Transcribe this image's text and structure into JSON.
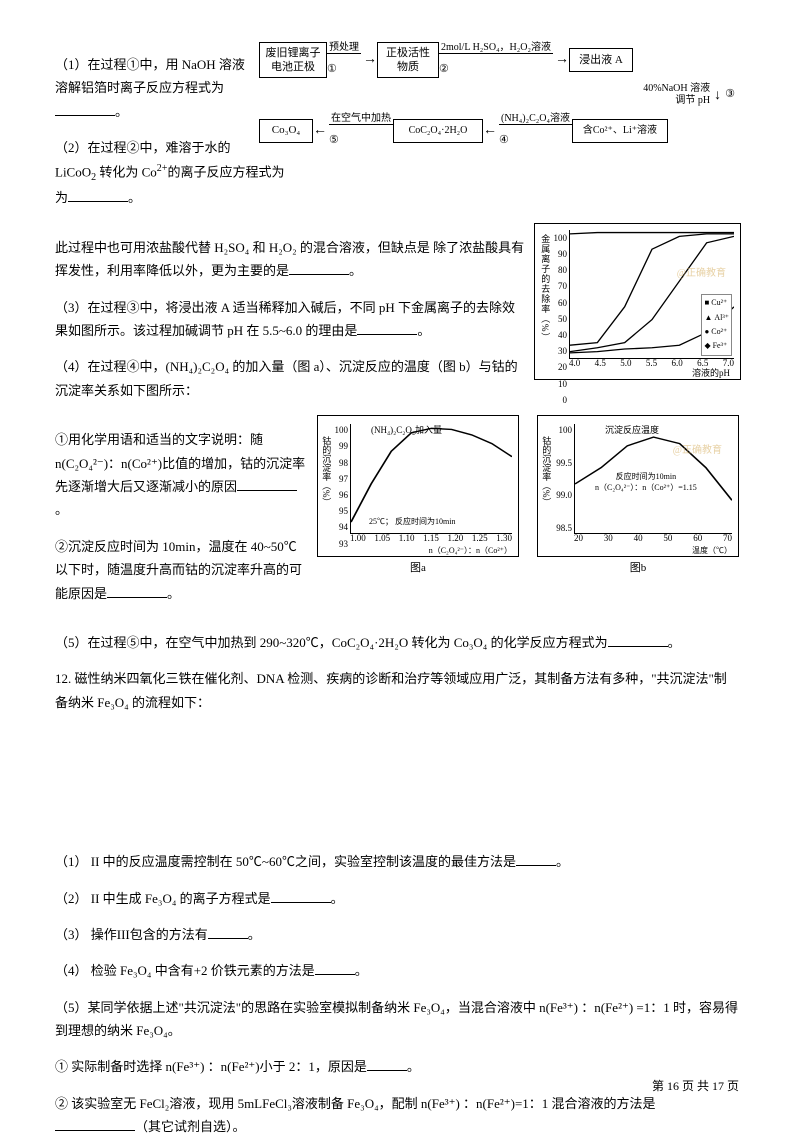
{
  "text": {
    "q1_a": "（1）在过程①中，用 NaOH 溶液溶解铝箔时离子反应方程式为",
    "q1_b": "。",
    "q2_a": "（2）在过程②中，难溶于水的 LiCoO",
    "q2_sub": "2",
    "q2_b": " 转化为 Co",
    "q2_sup": "2+",
    "q2_c": "的离子反应方程式为",
    "q2_d": "。",
    "q2_e": "此过程中也可用浓盐酸代替 H₂SO₄ 和 H₂O₂ 的混合溶液，但缺点是 除了浓盐酸具有挥发性，利用率降低以外，更为主要的是",
    "q2_f": "。",
    "q3_a": "（3）在过程③中，将浸出液 A 适当稀释加入碱后，不同 pH 下金属离子的去除效果如图所示。该过程加碱调节 pH 在 5.5~6.0 的理由是",
    "q3_b": "。",
    "q4_a": "（4）在过程④中，(NH₄)₂C₂O₄ 的加入量（图 a）、沉淀反应的温度（图 b）与钴的沉淀率关系如下图所示：",
    "q4_1a": "①用化学用语和适当的文字说明：随 n(C₂O₄²⁻)：n(Co²⁺)比值的增加，钴的沉淀率先逐渐增大后又逐渐减小的原因",
    "q4_1b": "。",
    "q4_2a": "②沉淀反应时间为 10min，温度在 40~50℃以下时，随温度升高而钴的沉淀率升高的可能原因是",
    "q4_2b": "。",
    "q5_a": "（5）在过程⑤中，在空气中加热到 290~320℃，CoC₂O₄·2H₂O 转化为 Co₃O₄ 的化学反应方程式为",
    "q5_b": "。",
    "q12": "12. 磁性纳米四氧化三铁在催化剂、DNA 检测、疾病的诊断和治疗等领域应用广泛，其制备方法有多种，\"共沉淀法\"制备纳米 Fe₃O₄ 的流程如下：",
    "s1": "（1） II 中的反应温度需控制在 50℃~60℃之间，实验室控制该温度的最佳方法是",
    "s1b": "。",
    "s2": "（2） II 中生成 Fe₃O₄ 的离子方程式是",
    "s2b": "。",
    "s3": "（3） 操作III包含的方法有",
    "s3b": "。",
    "s4": "（4） 检验 Fe₃O₄ 中含有+2 价铁元素的方法是",
    "s4b": "。",
    "s5": "（5）某同学依据上述\"共沉淀法\"的思路在实验室模拟制备纳米 Fe₃O₄，当混合溶液中 n(Fe³⁺) ：n(Fe²⁺) =1：1 时，容易得到理想的纳米 Fe₃O₄。",
    "s5_1": "① 实际制备时选择 n(Fe³⁺) ：n(Fe²⁺)小于 2：1，原因是",
    "s5_1b": "。",
    "s5_2": "② 该实验室无 FeCl₂溶液，现用 5mLFeCl₃溶液制备 Fe₃O₄，配制 n(Fe³⁺) ：n(Fe²⁺)=1：1 混合溶液的方法是",
    "s5_2b": "（其它试剂自选）。",
    "footer": "第 16 页 共 17 页"
  },
  "flow": {
    "box1": "废旧锂离子\n电池正极",
    "a1": "预处理",
    "c1": "①",
    "box2": "正极活性\n物质",
    "a2": "2mol/L H₂SO₄，H₂O₂溶液",
    "c2": "②",
    "box3": "浸出液 A",
    "down3": "40%NaOH 溶液\n调节 pH",
    "c3": "③",
    "box4": "含Co²⁺、Li⁺溶液",
    "a4": "(NH₄)₂C₂O₄溶液",
    "c4": "④",
    "box5": "CoC₂O₄·2H₂O",
    "a5": "在空气中加热",
    "c5": "⑤",
    "box6": "Co₃O₄"
  },
  "chartR": {
    "ylabel": "金属离子的去除率（%）",
    "xlabel": "溶液的pH",
    "yticks": [
      "100",
      "90",
      "80",
      "70",
      "60",
      "50",
      "40",
      "30",
      "20",
      "10",
      "0"
    ],
    "xticks": [
      "4.0",
      "4.5",
      "5.0",
      "5.5",
      "6.0",
      "6.5",
      "7.0"
    ],
    "wm": "@正确教育",
    "legend": [
      "Cu²⁺",
      "Al³⁺",
      "Co²⁺",
      "Fe³⁺"
    ],
    "series": {
      "s1": [
        [
          0,
          3
        ],
        [
          20,
          2
        ],
        [
          40,
          2
        ],
        [
          60,
          2
        ],
        [
          80,
          2
        ],
        [
          100,
          2
        ],
        [
          120,
          2
        ]
      ],
      "s2": [
        [
          0,
          90
        ],
        [
          20,
          88
        ],
        [
          40,
          60
        ],
        [
          60,
          15
        ],
        [
          80,
          5
        ],
        [
          100,
          3
        ],
        [
          120,
          3
        ]
      ],
      "s3": [
        [
          0,
          95
        ],
        [
          20,
          92
        ],
        [
          40,
          88
        ],
        [
          60,
          70
        ],
        [
          80,
          40
        ],
        [
          100,
          10
        ],
        [
          120,
          5
        ]
      ],
      "s4": [
        [
          0,
          96
        ],
        [
          20,
          95
        ],
        [
          40,
          93
        ],
        [
          60,
          92
        ],
        [
          80,
          90
        ],
        [
          100,
          80
        ],
        [
          120,
          60
        ]
      ]
    }
  },
  "chartA": {
    "ylabel": "钴的沉淀率（%）",
    "title": "(NH₄)₂C₂O₄加入量",
    "yticks": [
      "100",
      "99",
      "98",
      "97",
      "96",
      "95",
      "94",
      "93"
    ],
    "xticks": [
      "1.00",
      "1.05",
      "1.10",
      "1.15",
      "1.20",
      "1.25",
      "1.30"
    ],
    "xlabel": "n（C₂O₄²⁻）：n（Co²⁺）",
    "note": "25℃； 反应时间为10min",
    "caption": "图a",
    "data": [
      [
        0,
        90
      ],
      [
        15,
        55
      ],
      [
        30,
        25
      ],
      [
        45,
        8
      ],
      [
        60,
        4
      ],
      [
        75,
        5
      ],
      [
        90,
        10
      ],
      [
        105,
        18
      ],
      [
        120,
        30
      ]
    ]
  },
  "chartB": {
    "ylabel": "钴的沉淀率（%）",
    "title": "沉淀反应温度",
    "yticks": [
      "100",
      "99.5",
      "99.0",
      "98.5"
    ],
    "xticks": [
      "20",
      "30",
      "40",
      "50",
      "60",
      "70"
    ],
    "xlabel": "温度（℃）",
    "note1": "反应时间为10min",
    "note2": "n（C₂O₄²⁻）：n（Co²⁺）=1.15",
    "caption": "图b",
    "wm": "@正确教育",
    "data": [
      [
        0,
        55
      ],
      [
        20,
        40
      ],
      [
        40,
        20
      ],
      [
        60,
        12
      ],
      [
        80,
        18
      ],
      [
        100,
        40
      ],
      [
        120,
        70
      ]
    ]
  }
}
